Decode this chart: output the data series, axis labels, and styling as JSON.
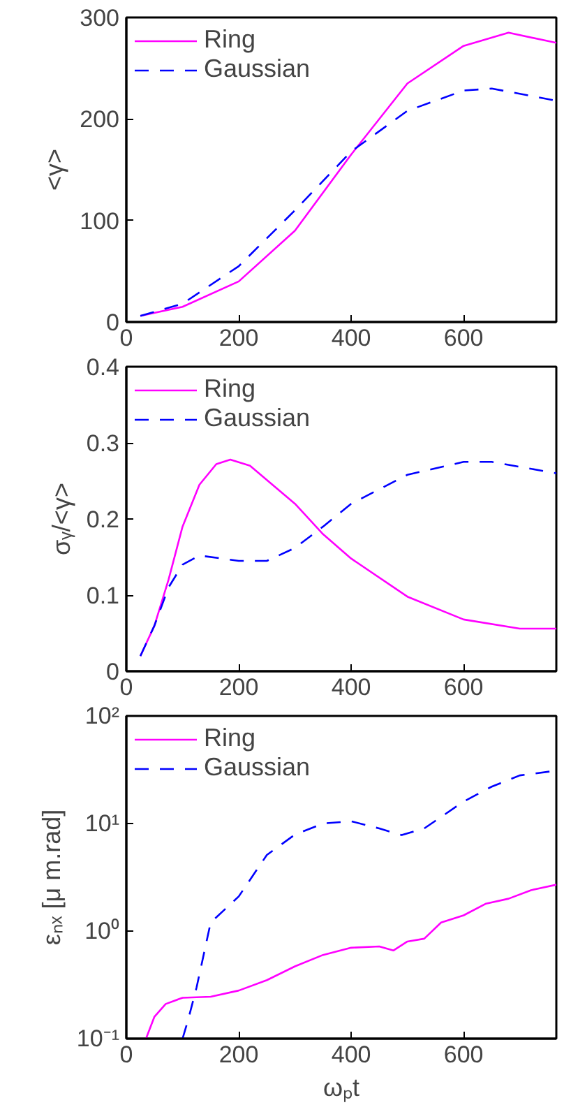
{
  "chart_data": [
    {
      "type": "line",
      "ylabel": "<γ>",
      "xlim": [
        0,
        765
      ],
      "xticks": [
        0,
        200,
        400,
        600
      ],
      "ylim": [
        0,
        300
      ],
      "yticks": [
        0,
        100,
        200,
        300
      ],
      "grid": false,
      "legend": "top left",
      "series": [
        {
          "name": "Ring",
          "color": "#ff00ff",
          "line_style": "solid",
          "x": [
            25,
            100,
            200,
            300,
            400,
            500,
            600,
            680,
            765
          ],
          "values": [
            6,
            15,
            40,
            90,
            165,
            235,
            272,
            285,
            275
          ]
        },
        {
          "name": "Gaussian",
          "color": "#0000ff",
          "line_style": "dashed",
          "x": [
            25,
            100,
            200,
            300,
            400,
            500,
            600,
            650,
            765
          ],
          "values": [
            6,
            18,
            55,
            110,
            168,
            208,
            228,
            230,
            218
          ]
        }
      ]
    },
    {
      "type": "line",
      "ylabel": "σᵧ/<γ>",
      "xlim": [
        0,
        765
      ],
      "xticks": [
        0,
        200,
        400,
        600
      ],
      "ylim": [
        0,
        0.4
      ],
      "yticks": [
        0,
        0.1,
        0.2,
        0.3,
        0.4
      ],
      "grid": false,
      "legend": "top left",
      "series": [
        {
          "name": "Ring",
          "color": "#ff00ff",
          "line_style": "solid",
          "x": [
            25,
            50,
            75,
            100,
            130,
            160,
            185,
            220,
            300,
            350,
            400,
            500,
            600,
            700,
            765
          ],
          "values": [
            0.02,
            0.06,
            0.12,
            0.19,
            0.245,
            0.272,
            0.278,
            0.27,
            0.22,
            0.18,
            0.148,
            0.098,
            0.068,
            0.056,
            0.056
          ]
        },
        {
          "name": "Gaussian",
          "color": "#0000ff",
          "line_style": "dashed",
          "x": [
            25,
            50,
            75,
            100,
            130,
            200,
            250,
            300,
            350,
            400,
            500,
            600,
            650,
            765
          ],
          "values": [
            0.02,
            0.06,
            0.11,
            0.14,
            0.152,
            0.145,
            0.145,
            0.162,
            0.19,
            0.22,
            0.258,
            0.275,
            0.275,
            0.26
          ]
        }
      ]
    },
    {
      "type": "line",
      "ylabel": "εₙₓ [μ m.rad]",
      "xlabel": "ωₚt",
      "log": "y",
      "xlim": [
        0,
        765
      ],
      "xticks": [
        0,
        200,
        400,
        600
      ],
      "ylim": [
        0.1,
        100
      ],
      "yticks": [
        {
          "value": 0.1,
          "label": "10⁻¹"
        },
        {
          "value": 1,
          "label": "10⁰"
        },
        {
          "value": 10,
          "label": "10¹"
        },
        {
          "value": 100,
          "label": "10²"
        }
      ],
      "grid": false,
      "legend": "top left",
      "series": [
        {
          "name": "Ring",
          "color": "#ff00ff",
          "line_style": "solid",
          "x": [
            35,
            50,
            70,
            100,
            150,
            200,
            250,
            300,
            350,
            400,
            450,
            475,
            500,
            530,
            560,
            600,
            640,
            680,
            720,
            765
          ],
          "values": [
            0.1,
            0.16,
            0.21,
            0.24,
            0.245,
            0.28,
            0.35,
            0.47,
            0.6,
            0.7,
            0.72,
            0.66,
            0.8,
            0.85,
            1.2,
            1.4,
            1.8,
            2.0,
            2.4,
            2.7
          ]
        },
        {
          "name": "Gaussian",
          "color": "#0000ff",
          "line_style": "dashed",
          "x": [
            100,
            110,
            125,
            150,
            200,
            250,
            300,
            350,
            400,
            450,
            490,
            530,
            600,
            650,
            700,
            765
          ],
          "values": [
            0.1,
            0.15,
            0.3,
            1.2,
            2.1,
            5.1,
            7.9,
            10,
            10.5,
            9,
            7.8,
            9,
            16,
            22,
            28,
            31
          ]
        }
      ]
    }
  ]
}
